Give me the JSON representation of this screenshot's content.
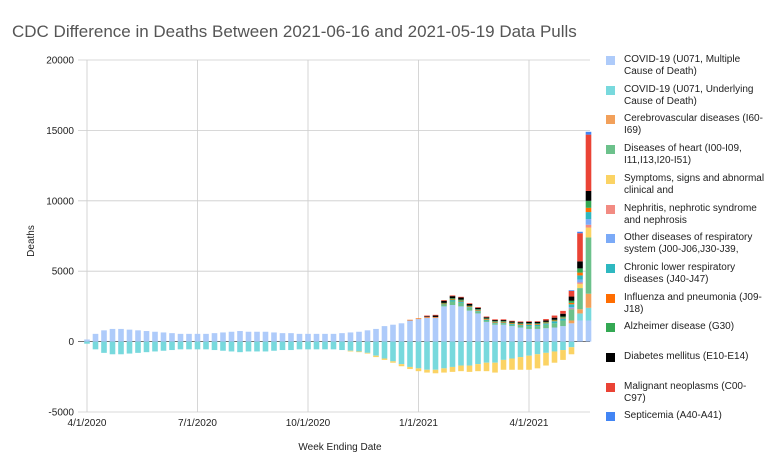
{
  "chart_data": {
    "type": "bar",
    "stacked": true,
    "title": "CDC Difference in Deaths Between 2021-06-16 and 2021-05-19 Data Pulls",
    "xlabel": "Week Ending Date",
    "ylabel": "Deaths",
    "ylim": [
      -5000,
      20000
    ],
    "yticks": [
      -5000,
      0,
      5000,
      10000,
      15000,
      20000
    ],
    "xtick_labels": [
      "4/1/2020",
      "7/1/2020",
      "10/1/2020",
      "1/1/2021",
      "4/1/2021"
    ],
    "xtick_indices": [
      0,
      13,
      26,
      39,
      52
    ],
    "grid": true,
    "legend_position": "right",
    "categories": [
      "2020-03-28",
      "2020-04-04",
      "2020-04-11",
      "2020-04-18",
      "2020-04-25",
      "2020-05-02",
      "2020-05-09",
      "2020-05-16",
      "2020-05-23",
      "2020-05-30",
      "2020-06-06",
      "2020-06-13",
      "2020-06-20",
      "2020-06-27",
      "2020-07-04",
      "2020-07-11",
      "2020-07-18",
      "2020-07-25",
      "2020-08-01",
      "2020-08-08",
      "2020-08-15",
      "2020-08-22",
      "2020-08-29",
      "2020-09-05",
      "2020-09-12",
      "2020-09-19",
      "2020-09-26",
      "2020-10-03",
      "2020-10-10",
      "2020-10-17",
      "2020-10-24",
      "2020-10-31",
      "2020-11-07",
      "2020-11-14",
      "2020-11-21",
      "2020-11-28",
      "2020-12-05",
      "2020-12-12",
      "2020-12-19",
      "2020-12-26",
      "2021-01-02",
      "2021-01-09",
      "2021-01-16",
      "2021-01-23",
      "2021-01-30",
      "2021-02-06",
      "2021-02-13",
      "2021-02-20",
      "2021-02-27",
      "2021-03-06",
      "2021-03-13",
      "2021-03-20",
      "2021-03-27",
      "2021-04-03",
      "2021-04-10",
      "2021-04-17",
      "2021-04-24",
      "2021-05-01",
      "2021-05-08",
      "2021-05-15"
    ],
    "series": [
      {
        "name": "COVID-19 (U071, Multiple Cause of Death)",
        "color": "#aecbfa",
        "values": [
          150,
          550,
          800,
          900,
          900,
          850,
          800,
          750,
          700,
          650,
          600,
          550,
          550,
          550,
          550,
          600,
          650,
          700,
          750,
          700,
          700,
          700,
          650,
          600,
          600,
          550,
          550,
          550,
          550,
          550,
          600,
          650,
          700,
          800,
          900,
          1100,
          1200,
          1300,
          1500,
          1600,
          1700,
          1700,
          2500,
          2600,
          2500,
          2200,
          2000,
          1400,
          1200,
          1200,
          1100,
          1000,
          900,
          900,
          950,
          1000,
          1100,
          1300,
          1500,
          1500
        ]
      },
      {
        "name": "COVID-19 (U071, Underlying Cause of Death)",
        "color": "#78d9dd",
        "values": [
          -150,
          -550,
          -800,
          -900,
          -900,
          -850,
          -800,
          -750,
          -700,
          -650,
          -600,
          -550,
          -550,
          -550,
          -550,
          -600,
          -650,
          -700,
          -750,
          -700,
          -700,
          -700,
          -650,
          -600,
          -600,
          -550,
          -550,
          -550,
          -550,
          -550,
          -600,
          -650,
          -700,
          -800,
          -1000,
          -1200,
          -1400,
          -1600,
          -1800,
          -1900,
          -2000,
          -2000,
          -1900,
          -1800,
          -1700,
          -1700,
          -1600,
          -1500,
          -1500,
          -1300,
          -1200,
          -1100,
          -1000,
          -900,
          -800,
          -700,
          -600,
          -400,
          500,
          900
        ]
      },
      {
        "name": "Cerebrovascular diseases (I60-I69)",
        "color": "#f2a05a",
        "values": [
          0,
          0,
          0,
          0,
          0,
          0,
          0,
          0,
          0,
          0,
          0,
          0,
          0,
          0,
          0,
          0,
          0,
          0,
          0,
          0,
          0,
          0,
          0,
          0,
          0,
          0,
          0,
          0,
          0,
          0,
          0,
          0,
          0,
          0,
          0,
          0,
          0,
          0,
          0,
          0,
          0,
          0,
          0,
          0,
          0,
          0,
          0,
          0,
          0,
          0,
          0,
          0,
          0,
          0,
          0,
          0,
          0,
          200,
          300,
          1000
        ]
      },
      {
        "name": "Diseases of heart (I00-I09, I11,I13,I20-I51)",
        "color": "#6cc18b",
        "values": [
          0,
          0,
          0,
          0,
          0,
          0,
          0,
          0,
          0,
          0,
          0,
          0,
          0,
          0,
          0,
          0,
          0,
          0,
          0,
          0,
          0,
          0,
          0,
          0,
          0,
          0,
          0,
          0,
          0,
          0,
          0,
          0,
          0,
          0,
          0,
          0,
          0,
          0,
          0,
          0,
          0,
          0,
          100,
          250,
          250,
          200,
          150,
          100,
          100,
          100,
          100,
          150,
          200,
          200,
          250,
          300,
          400,
          800,
          1500,
          4000
        ]
      },
      {
        "name": "Symptoms, signs and abnormal clinical and",
        "color": "#fbd364",
        "values": [
          0,
          0,
          0,
          0,
          0,
          0,
          0,
          0,
          0,
          0,
          0,
          0,
          0,
          0,
          0,
          0,
          0,
          0,
          0,
          0,
          0,
          0,
          0,
          0,
          0,
          0,
          0,
          0,
          0,
          0,
          0,
          -50,
          -50,
          -50,
          -100,
          -100,
          -100,
          -150,
          -150,
          -200,
          -200,
          -250,
          -300,
          -350,
          -400,
          -450,
          -500,
          -600,
          -700,
          -700,
          -800,
          -900,
          -1000,
          -1000,
          -900,
          -800,
          -700,
          -500,
          300,
          700
        ]
      },
      {
        "name": "Nephritis, nephrotic syndrome and nephrosis",
        "color": "#f28b82",
        "values": [
          0,
          0,
          0,
          0,
          0,
          0,
          0,
          0,
          0,
          0,
          0,
          0,
          0,
          0,
          0,
          0,
          0,
          0,
          0,
          0,
          0,
          0,
          0,
          0,
          0,
          0,
          0,
          0,
          0,
          0,
          0,
          0,
          0,
          0,
          0,
          0,
          0,
          0,
          0,
          0,
          0,
          0,
          0,
          0,
          0,
          0,
          0,
          0,
          0,
          0,
          0,
          0,
          0,
          0,
          0,
          0,
          0,
          50,
          100,
          200
        ]
      },
      {
        "name": "Other diseases of respiratory system (J00-J06,J30-J39,",
        "color": "#7baaf7",
        "values": [
          0,
          0,
          0,
          0,
          0,
          0,
          0,
          0,
          0,
          0,
          0,
          0,
          0,
          0,
          0,
          0,
          0,
          0,
          0,
          0,
          0,
          0,
          0,
          0,
          0,
          0,
          0,
          0,
          0,
          0,
          0,
          0,
          0,
          0,
          0,
          0,
          0,
          0,
          0,
          0,
          0,
          0,
          0,
          0,
          0,
          0,
          0,
          0,
          0,
          0,
          0,
          0,
          0,
          0,
          0,
          0,
          0,
          100,
          200,
          400
        ]
      },
      {
        "name": "Chronic lower respiratory diseases (J40-J47)",
        "color": "#2eb8c0",
        "values": [
          0,
          0,
          0,
          0,
          0,
          0,
          0,
          0,
          0,
          0,
          0,
          0,
          0,
          0,
          0,
          0,
          0,
          0,
          0,
          0,
          0,
          0,
          0,
          0,
          0,
          0,
          0,
          0,
          0,
          0,
          0,
          0,
          0,
          0,
          0,
          0,
          0,
          0,
          0,
          0,
          0,
          0,
          50,
          100,
          100,
          50,
          50,
          50,
          50,
          50,
          50,
          50,
          100,
          100,
          100,
          150,
          150,
          200,
          300,
          500
        ]
      },
      {
        "name": "Influenza and pneumonia (J09-J18)",
        "color": "#ff6d01",
        "values": [
          0,
          0,
          0,
          0,
          0,
          0,
          0,
          0,
          0,
          0,
          0,
          0,
          0,
          0,
          0,
          0,
          0,
          0,
          0,
          0,
          0,
          0,
          0,
          0,
          0,
          0,
          0,
          0,
          0,
          0,
          0,
          0,
          0,
          0,
          0,
          0,
          0,
          0,
          50,
          50,
          50,
          50,
          50,
          50,
          50,
          50,
          50,
          50,
          50,
          50,
          50,
          50,
          50,
          50,
          50,
          50,
          50,
          100,
          200,
          300
        ]
      },
      {
        "name": "Alzheimer disease (G30)",
        "color": "#34a853",
        "values": [
          0,
          0,
          0,
          0,
          0,
          0,
          0,
          0,
          0,
          0,
          0,
          0,
          0,
          0,
          0,
          0,
          0,
          0,
          0,
          0,
          0,
          0,
          0,
          0,
          0,
          0,
          0,
          0,
          0,
          0,
          0,
          0,
          0,
          0,
          0,
          0,
          0,
          0,
          0,
          0,
          0,
          0,
          50,
          80,
          80,
          50,
          50,
          50,
          50,
          50,
          50,
          50,
          50,
          50,
          50,
          50,
          80,
          150,
          300,
          500
        ]
      },
      {
        "name": "Diabetes mellitus (E10-E14)",
        "color": "#000000",
        "values": [
          0,
          0,
          0,
          0,
          0,
          0,
          0,
          0,
          0,
          0,
          0,
          0,
          0,
          0,
          0,
          0,
          0,
          0,
          0,
          0,
          0,
          0,
          0,
          0,
          0,
          0,
          0,
          0,
          0,
          0,
          0,
          0,
          0,
          0,
          0,
          0,
          0,
          0,
          0,
          0,
          50,
          100,
          150,
          150,
          150,
          120,
          100,
          80,
          80,
          80,
          80,
          80,
          100,
          100,
          100,
          150,
          200,
          300,
          500,
          700
        ]
      },
      {
        "name": "Malignant neoplasms (C00-C97)",
        "color": "#ea4335",
        "values": [
          0,
          0,
          0,
          0,
          0,
          0,
          0,
          0,
          0,
          0,
          0,
          0,
          0,
          0,
          0,
          0,
          0,
          0,
          0,
          0,
          0,
          0,
          0,
          0,
          0,
          0,
          0,
          0,
          0,
          0,
          0,
          0,
          0,
          0,
          0,
          0,
          0,
          0,
          0,
          0,
          50,
          50,
          50,
          50,
          50,
          50,
          50,
          50,
          50,
          50,
          50,
          50,
          50,
          50,
          100,
          150,
          200,
          400,
          2000,
          4000
        ]
      },
      {
        "name": "Septicemia (A40-A41)",
        "color": "#4285f4",
        "values": [
          0,
          0,
          0,
          0,
          0,
          0,
          0,
          0,
          0,
          0,
          0,
          0,
          0,
          0,
          0,
          0,
          0,
          0,
          0,
          0,
          0,
          0,
          0,
          0,
          0,
          0,
          0,
          0,
          0,
          0,
          0,
          0,
          0,
          0,
          0,
          0,
          0,
          0,
          0,
          0,
          0,
          0,
          0,
          0,
          0,
          0,
          0,
          0,
          0,
          0,
          0,
          0,
          0,
          0,
          0,
          0,
          0,
          50,
          100,
          200
        ]
      }
    ]
  }
}
